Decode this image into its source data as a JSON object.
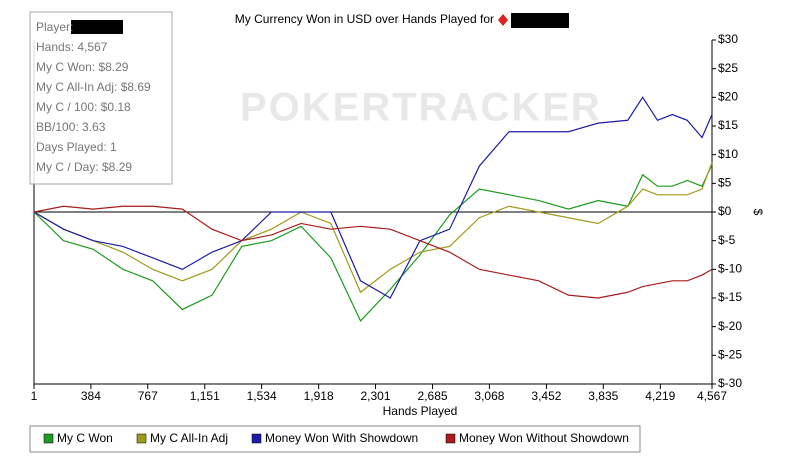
{
  "chart_data": {
    "type": "line",
    "title": "My Currency Won in USD over Hands Played for",
    "x_label": "Hands Played",
    "y_label": "$",
    "watermark": "POKERTRACKER",
    "stats": [
      "Player:",
      "Hands: 4,567",
      "My C Won: $8.29",
      "My C All-In Adj: $8.69",
      "My C / 100: $0.18",
      "BB/100: 3.63",
      "Days Played: 1",
      "My C / Day: $8.29"
    ],
    "x": [
      1,
      200,
      400,
      600,
      800,
      1000,
      1200,
      1400,
      1600,
      1800,
      2000,
      2200,
      2400,
      2600,
      2800,
      3000,
      3200,
      3400,
      3600,
      3800,
      4000,
      4100,
      4200,
      4300,
      4400,
      4500,
      4567
    ],
    "series": [
      {
        "name": "My C Won",
        "color": "#1f9b1f",
        "values": [
          0,
          -5,
          -6.5,
          -10,
          -12,
          -17,
          -14.5,
          -6,
          -5,
          -2.5,
          -8,
          -19,
          -13.5,
          -7.5,
          -0.5,
          4,
          3,
          2,
          0.5,
          2,
          1,
          6.5,
          4.5,
          4.5,
          5.5,
          4.5,
          8.29
        ]
      },
      {
        "name": "My C All-In Adj",
        "color": "#a09a1c",
        "values": [
          0,
          -3,
          -5,
          -7,
          -10,
          -12,
          -10,
          -5,
          -3,
          0,
          -2,
          -14,
          -10,
          -7,
          -6,
          -1,
          1,
          0,
          -1,
          -2,
          1,
          4,
          3,
          3,
          3,
          4,
          8.69
        ]
      },
      {
        "name": "Money Won With Showdown",
        "color": "#1c1ca8",
        "values": [
          0,
          -3,
          -5,
          -6,
          -8,
          -10,
          -7,
          -5,
          0,
          0,
          0,
          -12,
          -15,
          -5,
          -3,
          8,
          14,
          14,
          14,
          15.5,
          16,
          20,
          16,
          17,
          16,
          13,
          17
        ]
      },
      {
        "name": "Money Won Without Showdown",
        "color": "#a81c1c",
        "values": [
          0,
          1,
          0.5,
          1,
          1,
          0.5,
          -3,
          -5,
          -4,
          -2,
          -3,
          -2.5,
          -3,
          -5,
          -7,
          -10,
          -11,
          -12,
          -14.5,
          -15,
          -14,
          -13,
          -12.5,
          -12,
          -12,
          -11,
          -10
        ]
      }
    ],
    "xlim": [
      1,
      4567
    ],
    "xticks": [
      1,
      384,
      767,
      {
        "value": 1151,
        "label": "1,151"
      },
      {
        "value": 1534,
        "label": "1,534"
      },
      {
        "value": 1918,
        "label": "1,918"
      },
      {
        "value": 2301,
        "label": "2,301"
      },
      {
        "value": 2685,
        "label": "2,685"
      },
      {
        "value": 3068,
        "label": "3,068"
      },
      {
        "value": 3452,
        "label": "3,452"
      },
      {
        "value": 3835,
        "label": "3,835"
      },
      {
        "value": 4219,
        "label": "4,219"
      },
      {
        "value": 4567,
        "label": "4,567"
      }
    ],
    "ylim": [
      -30,
      30
    ],
    "yticks": [
      {
        "value": -30,
        "label": "$-30"
      },
      {
        "value": -25,
        "label": "$-25"
      },
      {
        "value": -20,
        "label": "$-20"
      },
      {
        "value": -15,
        "label": "$-15"
      },
      {
        "value": -10,
        "label": "$-10"
      },
      {
        "value": -5,
        "label": "$-5"
      },
      {
        "value": 0,
        "label": "$0"
      },
      {
        "value": 5,
        "label": "$5"
      },
      {
        "value": 10,
        "label": "$10"
      },
      {
        "value": 15,
        "label": "$15"
      },
      {
        "value": 20,
        "label": "$20"
      },
      {
        "value": 25,
        "label": "$25"
      },
      {
        "value": 30,
        "label": "$30"
      }
    ]
  }
}
